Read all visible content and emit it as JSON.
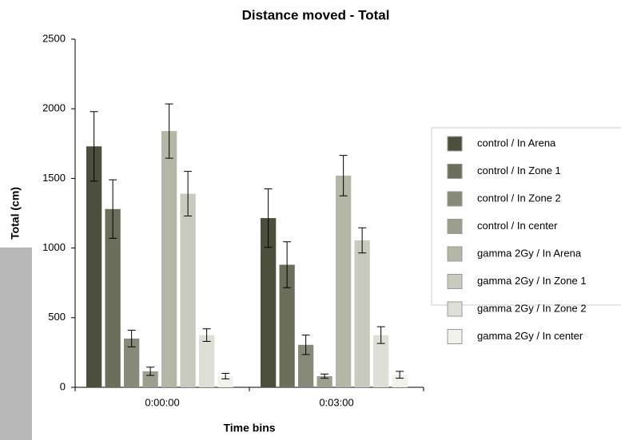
{
  "chart_data": {
    "type": "bar",
    "title": "Distance moved - Total",
    "x_label": "Time bins",
    "y_label": "Total (cm)",
    "categories": [
      "0:00:00",
      "0:03:00"
    ],
    "series": [
      {
        "name": "control / In Arena",
        "color": "#4b4f3c",
        "values": [
          1730,
          1215
        ],
        "errors": [
          250,
          210
        ]
      },
      {
        "name": "control / In Zone 1",
        "color": "#6b6e5b",
        "values": [
          1280,
          880
        ],
        "errors": [
          210,
          165
        ]
      },
      {
        "name": "control / In Zone 2",
        "color": "#878a78",
        "values": [
          350,
          305
        ],
        "errors": [
          60,
          70
        ]
      },
      {
        "name": "control / In center",
        "color": "#9c9e8e",
        "values": [
          115,
          80
        ],
        "errors": [
          30,
          15
        ]
      },
      {
        "name": "gamma 2Gy / In Arena",
        "color": "#b4b6a6",
        "values": [
          1840,
          1520
        ],
        "errors": [
          195,
          145
        ]
      },
      {
        "name": "gamma 2Gy / In Zone 1",
        "color": "#c9cabe",
        "values": [
          1390,
          1055
        ],
        "errors": [
          160,
          90
        ]
      },
      {
        "name": "gamma 2Gy / In Zone 2",
        "color": "#dedfd6",
        "values": [
          375,
          375
        ],
        "errors": [
          45,
          60
        ]
      },
      {
        "name": "gamma 2Gy / In center",
        "color": "#f1f2ec",
        "values": [
          80,
          90
        ],
        "errors": [
          20,
          25
        ]
      }
    ],
    "ylim": [
      0,
      2500
    ],
    "yticks": [
      0,
      500,
      1000,
      1500,
      2000,
      2500
    ],
    "grid": false,
    "legend": "right"
  }
}
